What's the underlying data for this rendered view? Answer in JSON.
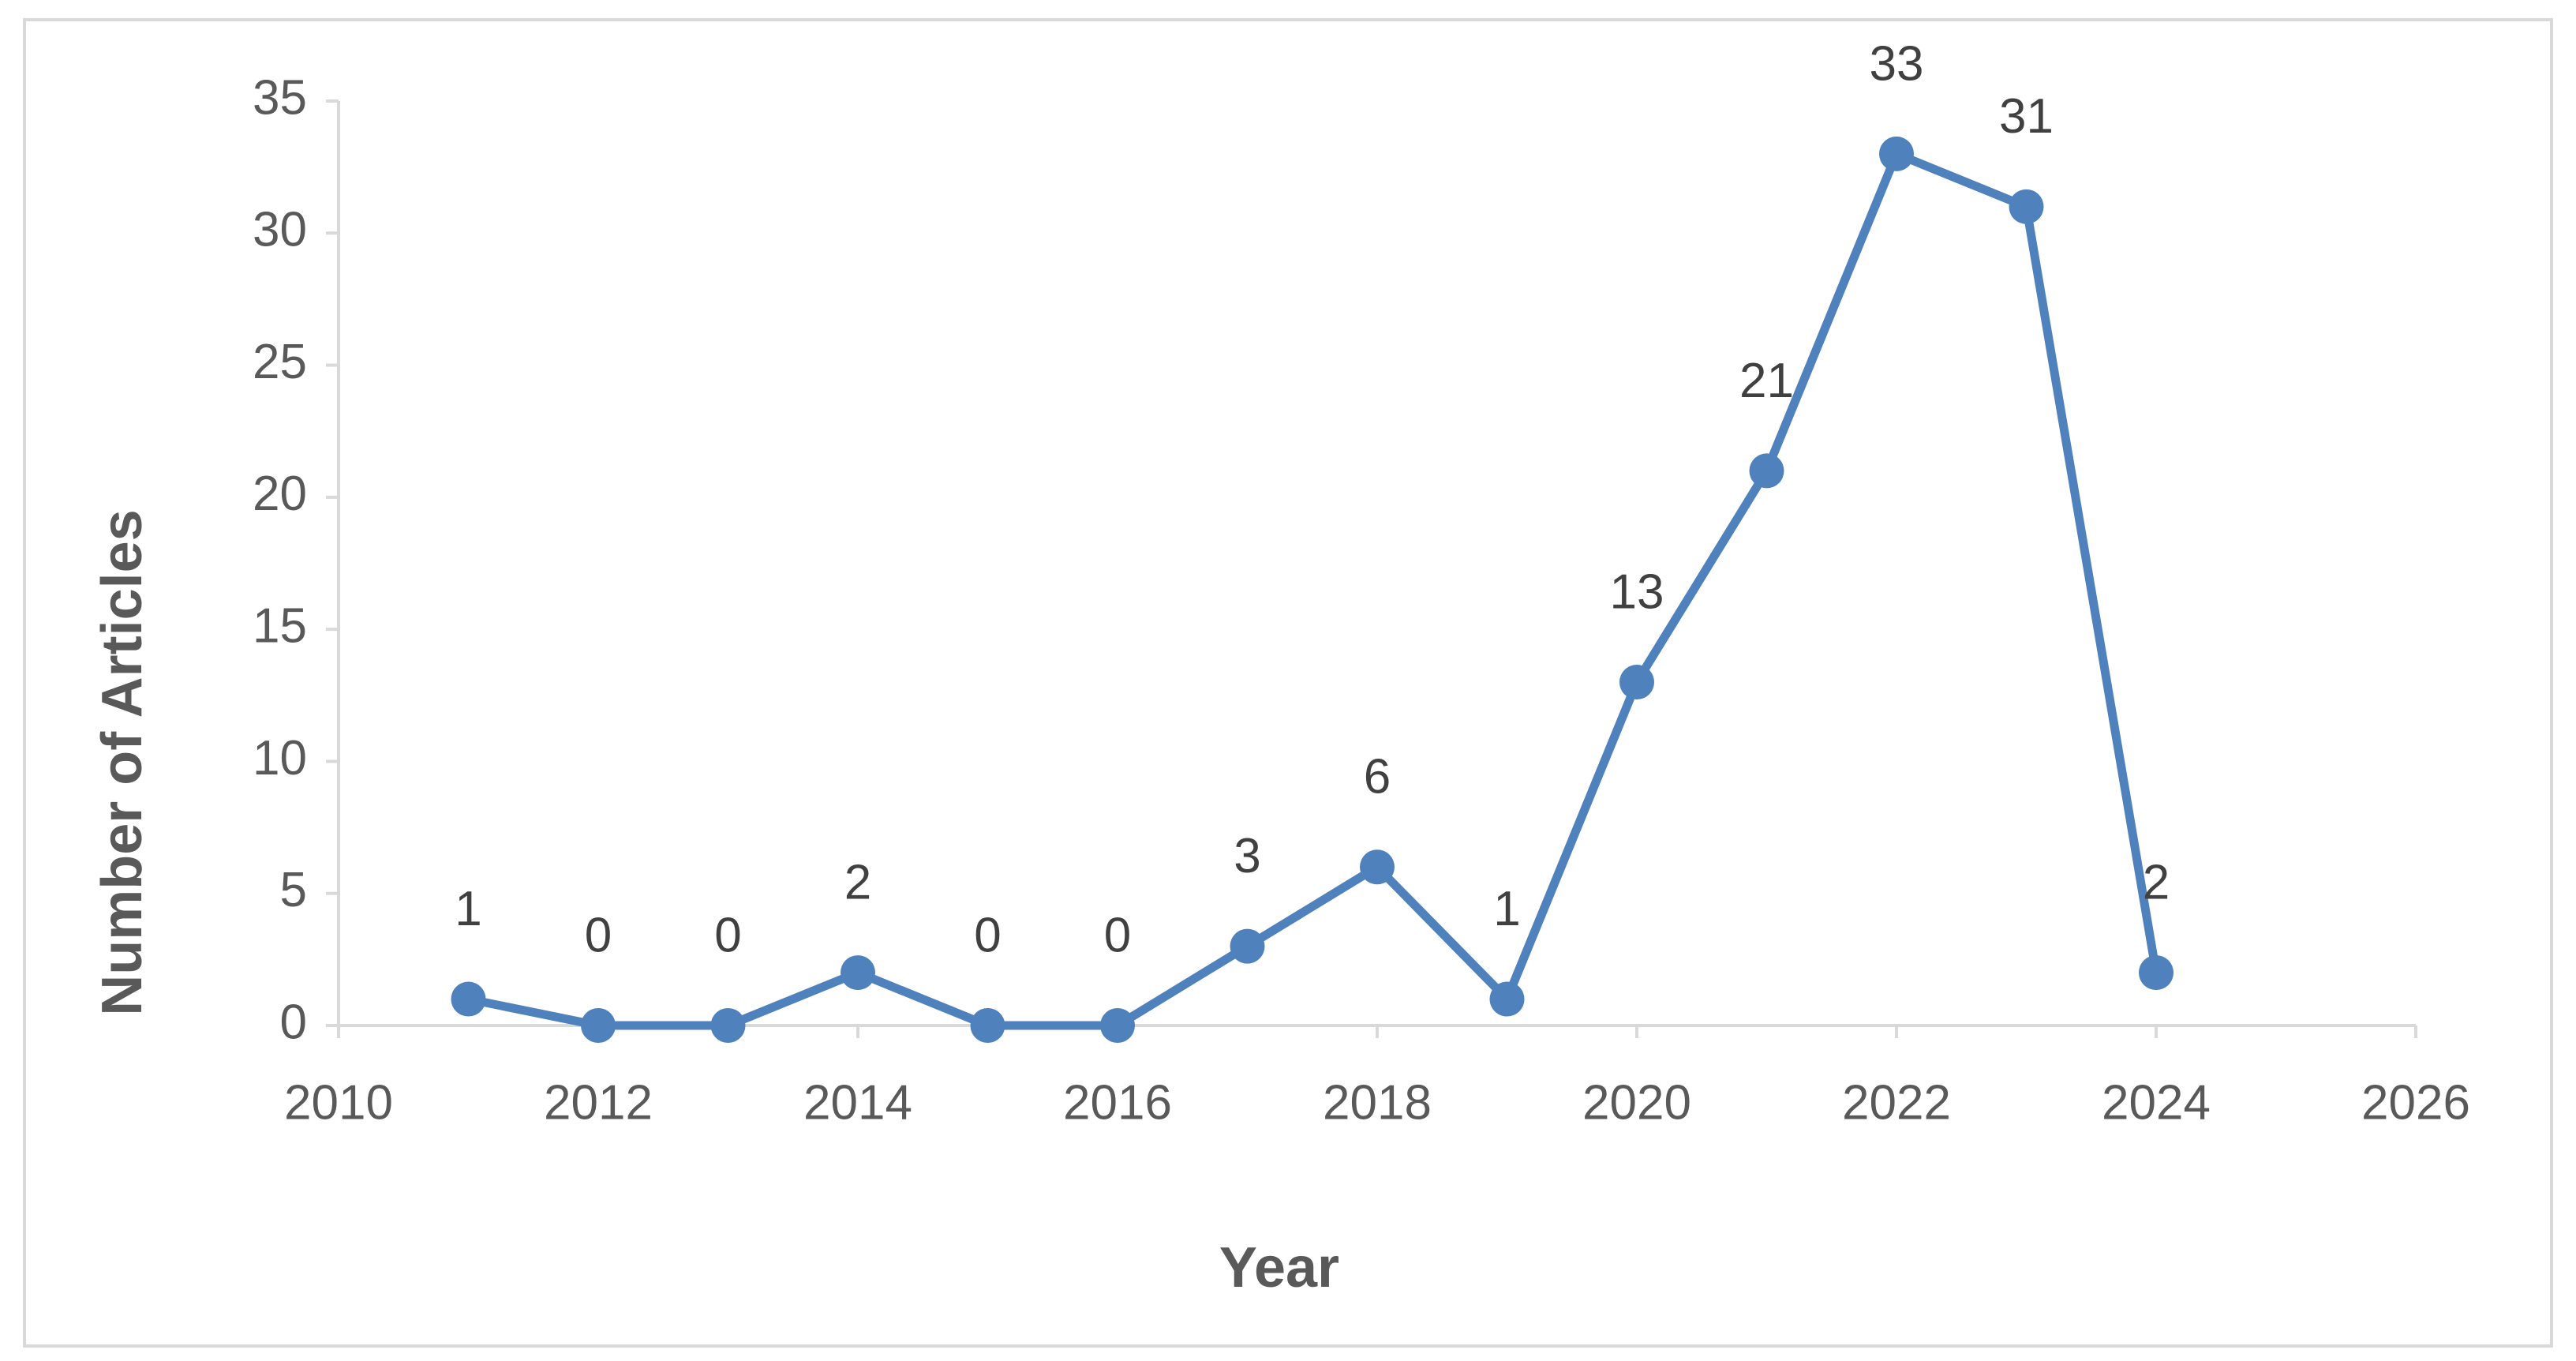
{
  "chart_data": {
    "type": "line",
    "x_label": "Year",
    "y_label": "Number of Articles",
    "x": [
      2011,
      2012,
      2013,
      2014,
      2015,
      2016,
      2017,
      2018,
      2019,
      2020,
      2021,
      2022,
      2023,
      2024
    ],
    "series": [
      {
        "color": "#4f81bd",
        "values": [
          1,
          0,
          0,
          2,
          0,
          0,
          3,
          6,
          1,
          13,
          21,
          33,
          31,
          2
        ]
      }
    ],
    "xlim": [
      2010,
      2026
    ],
    "xticks": [
      2010,
      2012,
      2014,
      2016,
      2018,
      2020,
      2022,
      2024,
      2026
    ],
    "ylim": [
      0,
      35
    ],
    "yticks": [
      0,
      5,
      10,
      15,
      20,
      25,
      30,
      35
    ],
    "grid": false
  }
}
